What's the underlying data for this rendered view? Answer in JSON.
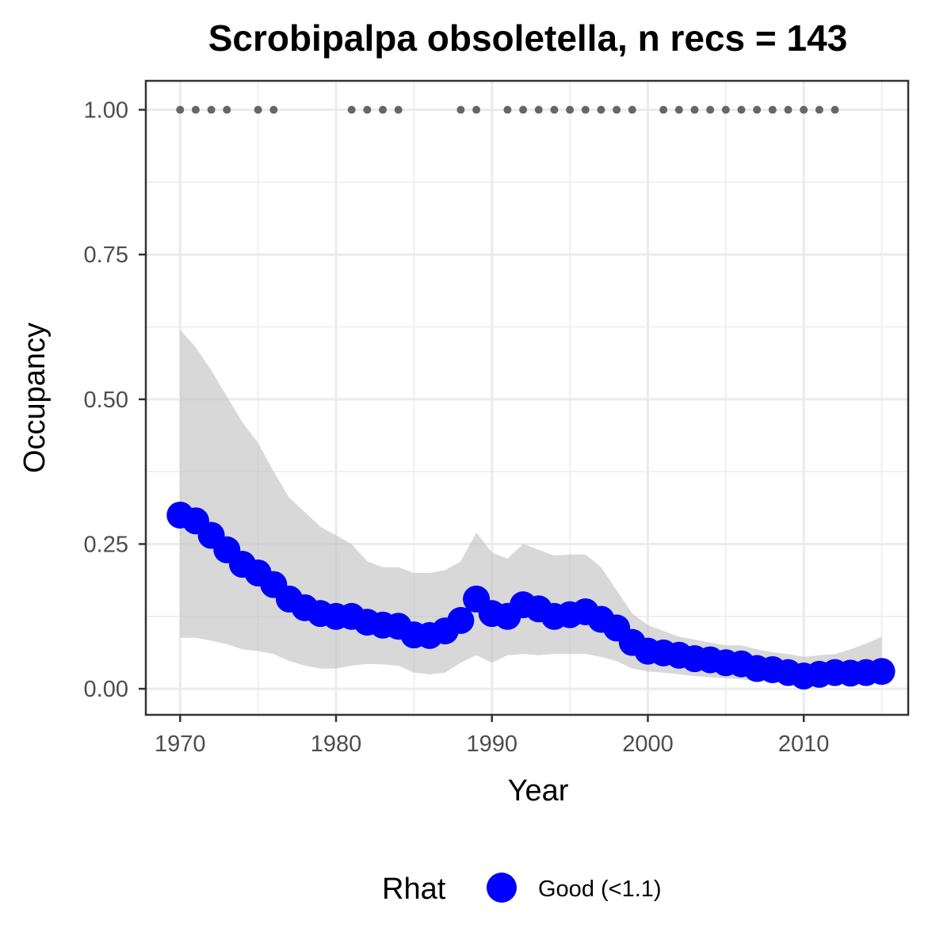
{
  "chart_data": {
    "type": "line",
    "title": "Scrobipalpa obsoletella, n recs = 143",
    "xlabel": "Year",
    "ylabel": "Occupancy",
    "xlim": [
      1967.8,
      2016.7
    ],
    "ylim": [
      -0.045,
      1.05
    ],
    "x_ticks": [
      1970,
      1980,
      1990,
      2000,
      2010
    ],
    "x_tick_labels": [
      "1970",
      "1980",
      "1990",
      "2000",
      "2010"
    ],
    "y_ticks": [
      0,
      0.25,
      0.5,
      0.75,
      1.0
    ],
    "y_tick_labels": [
      "0.00",
      "0.25",
      "0.50",
      "0.75",
      "1.00"
    ],
    "grid": true,
    "legend_position": "bottom",
    "legend_title": "Rhat",
    "colors": {
      "line": "#0000ff",
      "ribbon": "#bebebe",
      "record_points": "#666666",
      "grid": "#ebebeb",
      "panel_border": "#333333"
    },
    "series": [
      {
        "name": "Good (<1.1)",
        "x": [
          1970,
          1971,
          1972,
          1973,
          1974,
          1975,
          1976,
          1977,
          1978,
          1979,
          1980,
          1981,
          1982,
          1983,
          1984,
          1985,
          1986,
          1987,
          1988,
          1989,
          1990,
          1991,
          1992,
          1993,
          1994,
          1995,
          1996,
          1997,
          1998,
          1999,
          2000,
          2001,
          2002,
          2003,
          2004,
          2005,
          2006,
          2007,
          2008,
          2009,
          2010,
          2011,
          2012,
          2013,
          2014,
          2015
        ],
        "y": [
          0.3,
          0.29,
          0.265,
          0.24,
          0.215,
          0.2,
          0.18,
          0.155,
          0.14,
          0.13,
          0.125,
          0.125,
          0.115,
          0.11,
          0.108,
          0.093,
          0.092,
          0.1,
          0.118,
          0.155,
          0.13,
          0.125,
          0.145,
          0.138,
          0.125,
          0.128,
          0.133,
          0.12,
          0.105,
          0.08,
          0.065,
          0.062,
          0.058,
          0.052,
          0.05,
          0.045,
          0.043,
          0.035,
          0.033,
          0.028,
          0.022,
          0.025,
          0.028,
          0.027,
          0.028,
          0.03
        ],
        "lower": [
          0.088,
          0.088,
          0.083,
          0.077,
          0.068,
          0.065,
          0.06,
          0.048,
          0.04,
          0.035,
          0.035,
          0.04,
          0.043,
          0.042,
          0.04,
          0.028,
          0.025,
          0.028,
          0.045,
          0.058,
          0.045,
          0.058,
          0.06,
          0.058,
          0.06,
          0.06,
          0.06,
          0.055,
          0.048,
          0.035,
          0.03,
          0.028,
          0.025,
          0.022,
          0.02,
          0.018,
          0.016,
          0.013,
          0.012,
          0.01,
          0.008,
          0.01,
          0.012,
          0.012,
          0.012,
          0.012
        ],
        "upper": [
          0.62,
          0.59,
          0.55,
          0.505,
          0.46,
          0.425,
          0.375,
          0.33,
          0.305,
          0.28,
          0.265,
          0.25,
          0.22,
          0.21,
          0.21,
          0.2,
          0.2,
          0.205,
          0.22,
          0.27,
          0.235,
          0.225,
          0.25,
          0.24,
          0.23,
          0.232,
          0.232,
          0.21,
          0.17,
          0.13,
          0.11,
          0.1,
          0.09,
          0.085,
          0.08,
          0.075,
          0.075,
          0.068,
          0.063,
          0.06,
          0.055,
          0.058,
          0.06,
          0.068,
          0.078,
          0.09
        ]
      }
    ],
    "records": {
      "y": 1.0,
      "x": [
        1970,
        1971,
        1972,
        1973,
        1975,
        1976,
        1981,
        1982,
        1983,
        1984,
        1988,
        1989,
        1991,
        1992,
        1993,
        1994,
        1995,
        1996,
        1997,
        1998,
        1999,
        2001,
        2002,
        2003,
        2004,
        2005,
        2006,
        2007,
        2008,
        2009,
        2010,
        2011,
        2012
      ]
    }
  }
}
